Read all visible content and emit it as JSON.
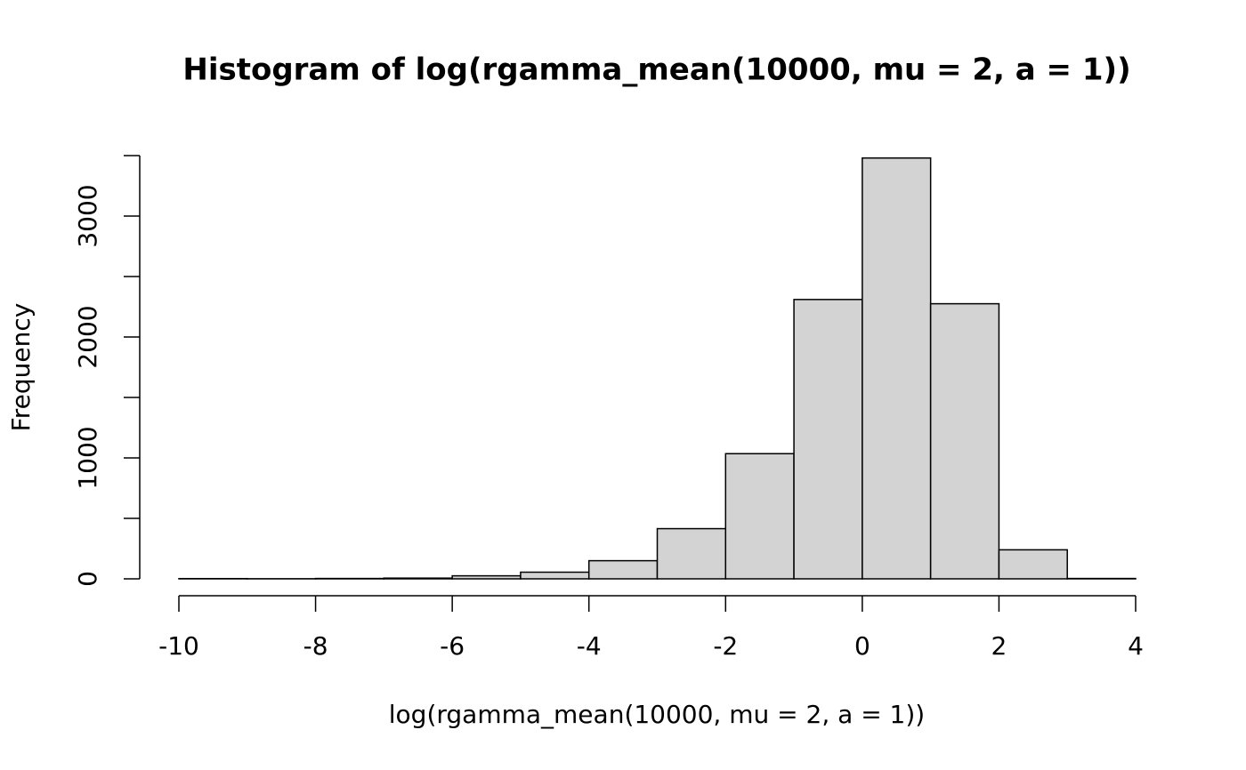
{
  "chart_data": {
    "type": "histogram",
    "title": "Histogram of log(rgamma_mean(10000, mu = 2, a = 1))",
    "x_label": "log(rgamma_mean(10000, mu = 2, a = 1))",
    "y_label": "Frequency",
    "bins": [
      -10,
      -9,
      -8,
      -7,
      -6,
      -5,
      -4,
      -3,
      -2,
      -1,
      0,
      1,
      2,
      3,
      4
    ],
    "values": [
      2,
      1,
      3,
      6,
      25,
      55,
      150,
      415,
      1035,
      2310,
      3480,
      2275,
      240,
      3
    ],
    "color": "#d3d3d3",
    "xlim": [
      -10,
      4
    ],
    "xticks": [
      -10,
      -8,
      -6,
      -4,
      -2,
      0,
      2,
      4
    ],
    "ylim": [
      0,
      3500
    ],
    "yticks": [
      0,
      1000,
      2000,
      3000
    ],
    "yminorticks": [
      500,
      1500,
      2500,
      3500
    ]
  }
}
